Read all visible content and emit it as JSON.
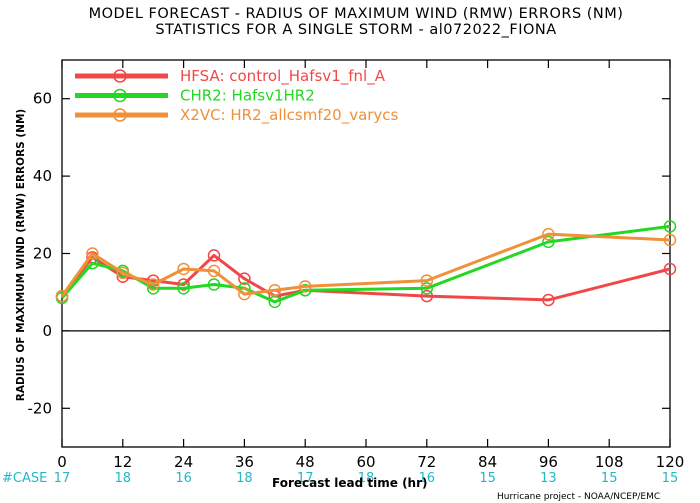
{
  "chart_data": {
    "type": "line",
    "title": "MODEL FORECAST - RADIUS OF MAXIMUM WIND (RMW) ERRORS (NM)",
    "subtitle": "STATISTICS FOR A SINGLE STORM - al072022_FIONA",
    "xlabel": "Forecast lead time (hr)",
    "ylabel": "RADIUS OF MAXIMUM WIND (RMW) ERRORS (NM)",
    "xlim": [
      0,
      120
    ],
    "ylim": [
      -30,
      70
    ],
    "xticks": [
      0,
      12,
      24,
      36,
      48,
      60,
      72,
      84,
      96,
      108,
      120
    ],
    "yticks": [
      -20,
      0,
      20,
      40,
      60
    ],
    "ytick_labels": [
      "-20",
      "0",
      "20",
      "40",
      "60"
    ],
    "grid": false,
    "legend_position": "top-left",
    "case_label": "#CASE",
    "case_counts": [
      17,
      18,
      16,
      18,
      17,
      18,
      16,
      15,
      13,
      15,
      15
    ],
    "credit": "Hurricane project - NOAA/NCEP/EMC",
    "series": [
      {
        "name": "HFSA: control_Hafsv1_fnl_A",
        "color": "#f04848",
        "x": [
          0,
          6,
          12,
          18,
          24,
          30,
          36,
          42,
          48,
          72,
          96,
          120
        ],
        "y": [
          9,
          19,
          14,
          13,
          12,
          19.5,
          13.5,
          9,
          10.5,
          9,
          8,
          16
        ]
      },
      {
        "name": "CHR2: Hafsv1HR2",
        "color": "#22d822",
        "x": [
          0,
          6,
          12,
          18,
          24,
          30,
          36,
          42,
          48,
          72,
          96,
          120
        ],
        "y": [
          8.5,
          17.5,
          15.5,
          11,
          11,
          12,
          11,
          7.5,
          10.5,
          11,
          23,
          27
        ]
      },
      {
        "name": "X2VC: HR2_allcsmf20_varycs",
        "color": "#f09038",
        "x": [
          0,
          6,
          12,
          18,
          24,
          30,
          36,
          42,
          48,
          72,
          96,
          120
        ],
        "y": [
          9,
          20,
          15,
          12,
          16,
          15.5,
          9.5,
          10.5,
          11.5,
          13,
          25,
          23.5
        ]
      }
    ]
  }
}
